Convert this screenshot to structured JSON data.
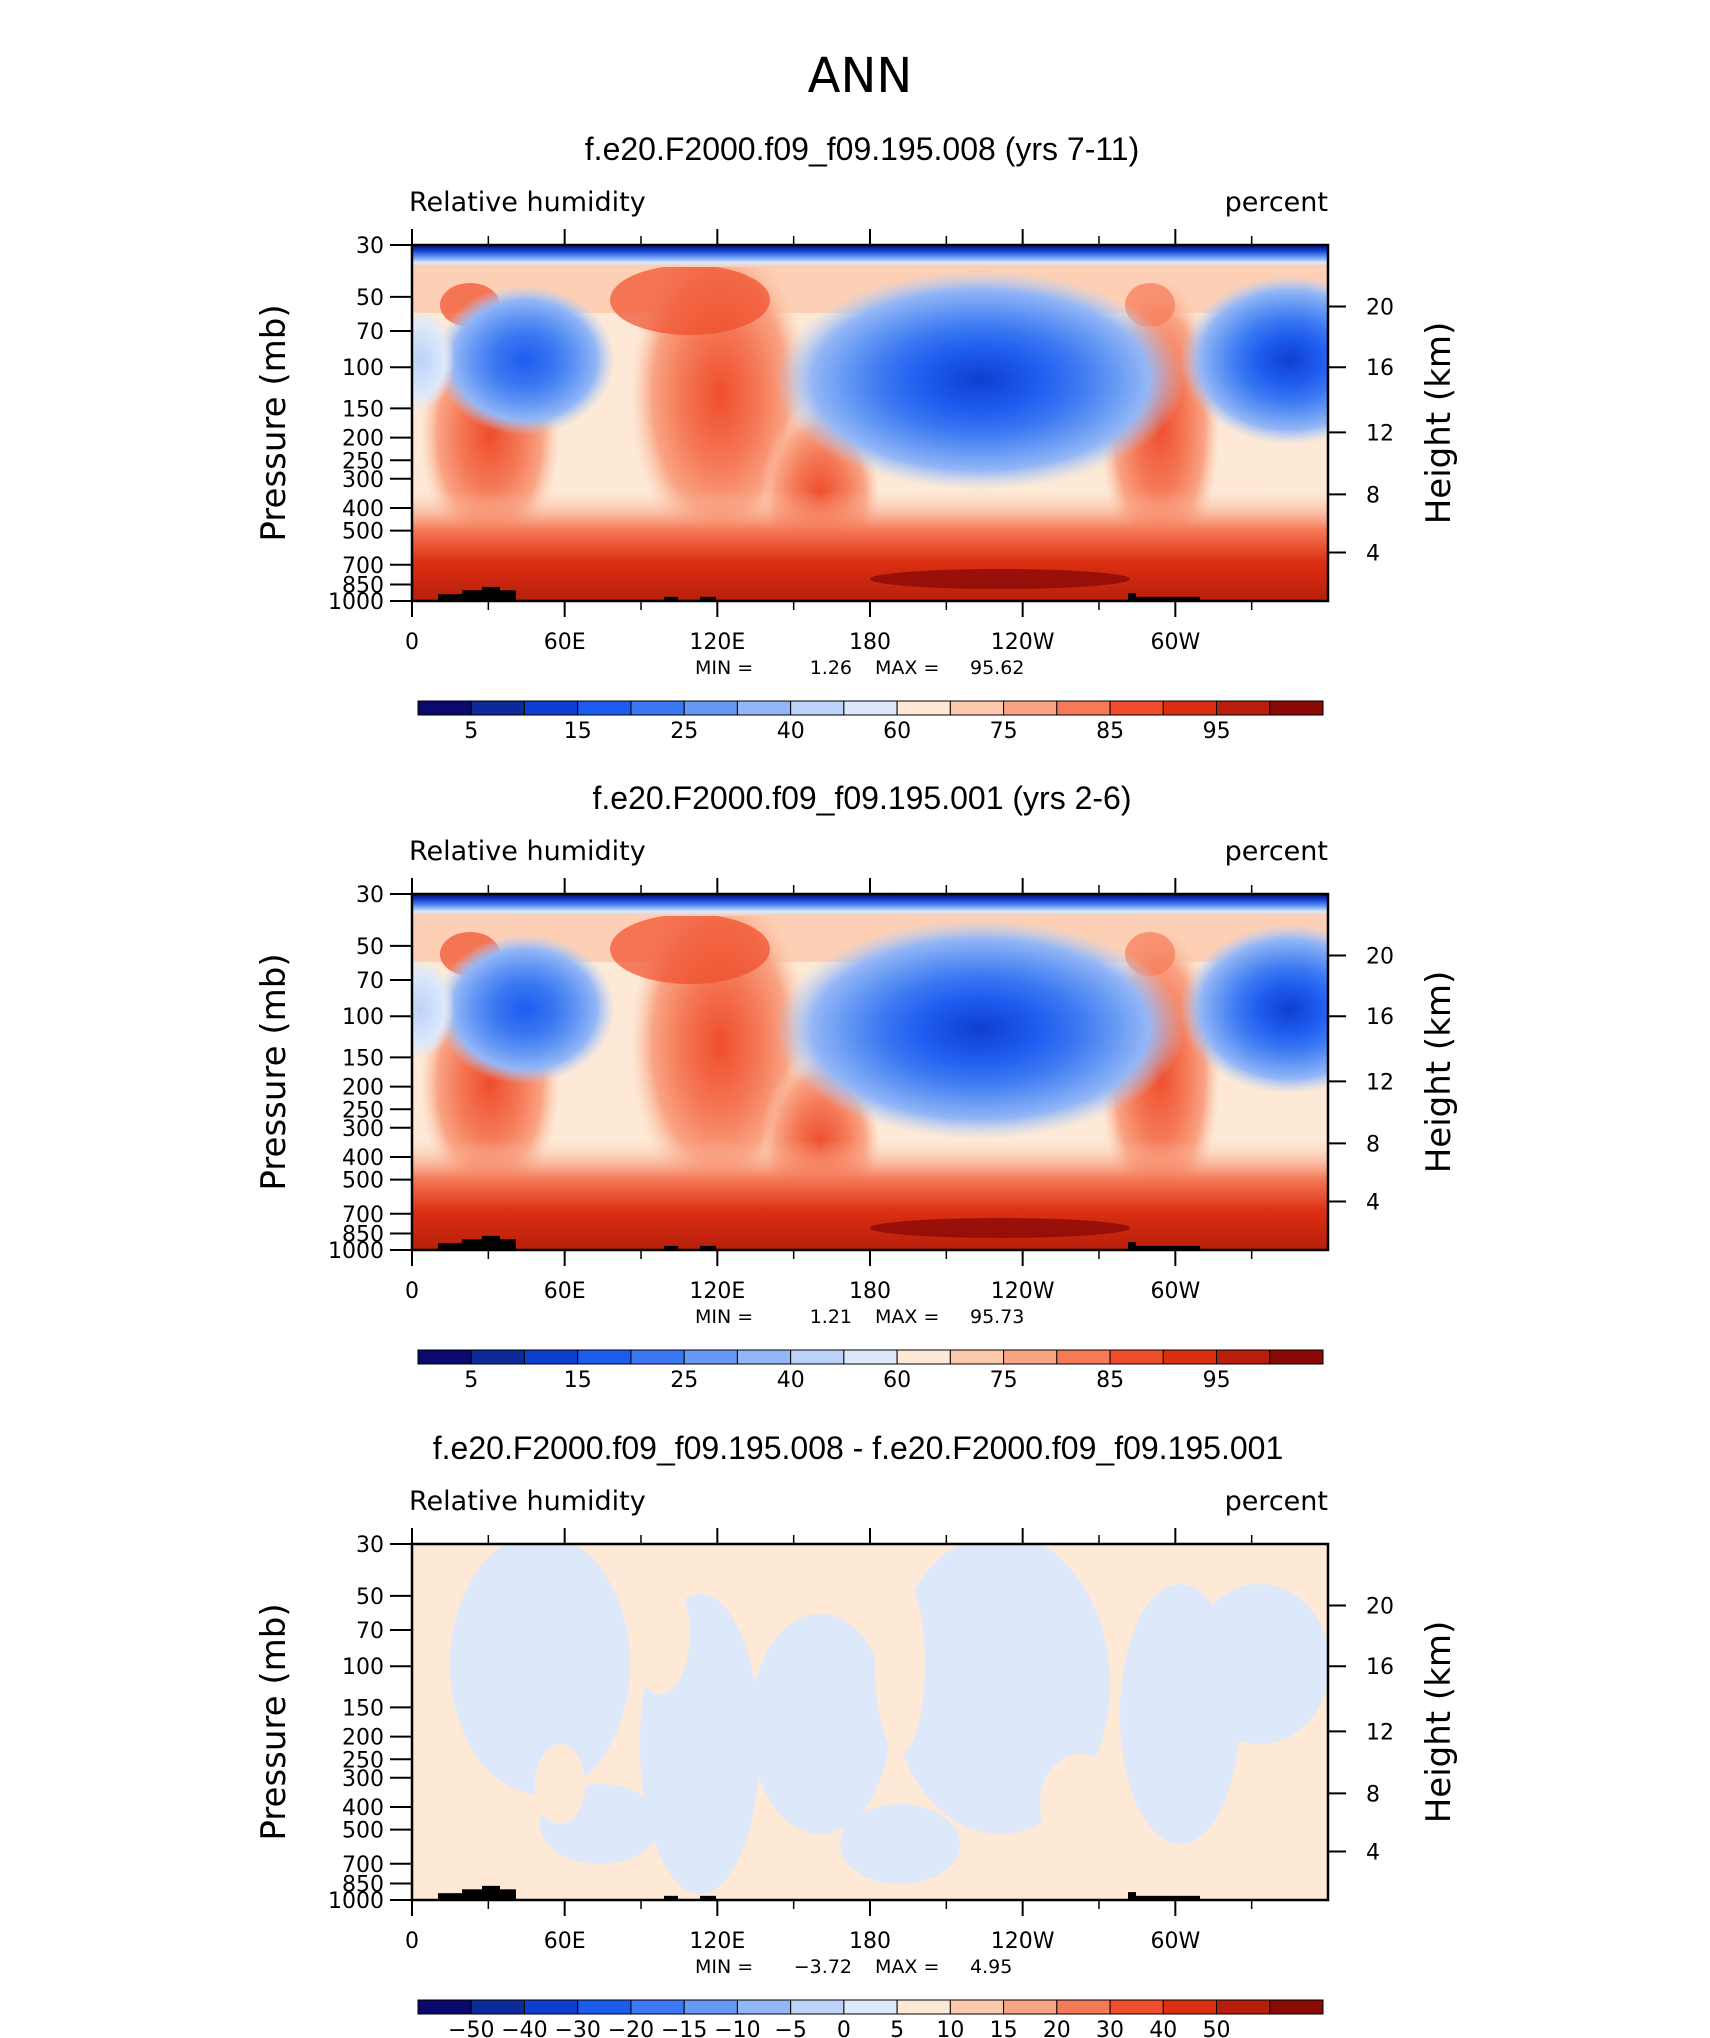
{
  "figure_title": "ANN",
  "chart_data": [
    {
      "type": "heatmap",
      "title": "f.e20.F2000.f09_f09.195.008 (yrs 7-11)",
      "left_label": "Relative humidity",
      "right_label": "percent",
      "ylabel": "Pressure (mb)",
      "y2label": "Height (km)",
      "x_ticks": [
        "0",
        "60E",
        "120E",
        "180",
        "120W",
        "60W"
      ],
      "x_range": [
        0,
        360
      ],
      "y_ticks": [
        "30",
        "50",
        "70",
        "100",
        "150",
        "200",
        "250",
        "300",
        "400",
        "500",
        "700",
        "850",
        "1000"
      ],
      "y_range": [
        30,
        1000
      ],
      "y2_ticks": [
        "20",
        "16",
        "12",
        "8",
        "4"
      ],
      "stats": {
        "min_label": "MIN =",
        "min": "1.26",
        "max_label": "MAX =",
        "max": "95.62"
      },
      "colorbar": {
        "levels": [
          "5",
          "10",
          "15",
          "20",
          "25",
          "30",
          "40",
          "50",
          "60",
          "70",
          "75",
          "80",
          "85",
          "90",
          "95"
        ],
        "labels": [
          "5",
          "15",
          "25",
          "40",
          "60",
          "75",
          "85",
          "95"
        ],
        "colors": [
          "#0a0a6e",
          "#0c2a9a",
          "#0f3fd0",
          "#1e5cf0",
          "#3b78f2",
          "#6699f4",
          "#93b6f6",
          "#bcd2f8",
          "#dde9fb",
          "#fde9d6",
          "#fcc9ad",
          "#f9a484",
          "#f57a58",
          "#ef4d2b",
          "#dc2f12",
          "#b71f0c",
          "#8a0a06"
        ]
      }
    },
    {
      "type": "heatmap",
      "title": "f.e20.F2000.f09_f09.195.001 (yrs 2-6)",
      "left_label": "Relative humidity",
      "right_label": "percent",
      "ylabel": "Pressure (mb)",
      "y2label": "Height (km)",
      "x_ticks": [
        "0",
        "60E",
        "120E",
        "180",
        "120W",
        "60W"
      ],
      "x_range": [
        0,
        360
      ],
      "y_ticks": [
        "30",
        "50",
        "70",
        "100",
        "150",
        "200",
        "250",
        "300",
        "400",
        "500",
        "700",
        "850",
        "1000"
      ],
      "y_range": [
        30,
        1000
      ],
      "y2_ticks": [
        "20",
        "16",
        "12",
        "8",
        "4"
      ],
      "stats": {
        "min_label": "MIN =",
        "min": "1.21",
        "max_label": "MAX =",
        "max": "95.73"
      },
      "colorbar": {
        "levels": [
          "5",
          "10",
          "15",
          "20",
          "25",
          "30",
          "40",
          "50",
          "60",
          "70",
          "75",
          "80",
          "85",
          "90",
          "95"
        ],
        "labels": [
          "5",
          "15",
          "25",
          "40",
          "60",
          "75",
          "85",
          "95"
        ],
        "colors": [
          "#0a0a6e",
          "#0c2a9a",
          "#0f3fd0",
          "#1e5cf0",
          "#3b78f2",
          "#6699f4",
          "#93b6f6",
          "#bcd2f8",
          "#dde9fb",
          "#fde9d6",
          "#fcc9ad",
          "#f9a484",
          "#f57a58",
          "#ef4d2b",
          "#dc2f12",
          "#b71f0c",
          "#8a0a06"
        ]
      }
    },
    {
      "type": "heatmap",
      "title": "f.e20.F2000.f09_f09.195.008 - f.e20.F2000.f09_f09.195.001",
      "left_label": "Relative humidity",
      "right_label": "percent",
      "ylabel": "Pressure (mb)",
      "y2label": "Height (km)",
      "x_ticks": [
        "0",
        "60E",
        "120E",
        "180",
        "120W",
        "60W"
      ],
      "x_range": [
        0,
        360
      ],
      "y_ticks": [
        "30",
        "50",
        "70",
        "100",
        "150",
        "200",
        "250",
        "300",
        "400",
        "500",
        "700",
        "850",
        "1000"
      ],
      "y_range": [
        30,
        1000
      ],
      "y2_ticks": [
        "20",
        "16",
        "12",
        "8",
        "4"
      ],
      "stats": {
        "min_label": "MIN =",
        "min": "−3.72",
        "max_label": "MAX =",
        "max": "4.95"
      },
      "colorbar": {
        "levels": [
          "−50",
          "−40",
          "−30",
          "−20",
          "−15",
          "−10",
          "−5",
          "0",
          "5",
          "10",
          "15",
          "20",
          "30",
          "40",
          "50"
        ],
        "labels": [
          "−50",
          "−40",
          "−30",
          "−20",
          "−15",
          "−10",
          "−5",
          "0",
          "5",
          "10",
          "15",
          "20",
          "30",
          "40",
          "50"
        ],
        "colors": [
          "#0a0a6e",
          "#0c2a9a",
          "#0f3fd0",
          "#1e5cf0",
          "#3b78f2",
          "#6699f4",
          "#93b6f6",
          "#bcd2f8",
          "#dde9fb",
          "#fde9d6",
          "#fcc9ad",
          "#f9a484",
          "#f57a58",
          "#ef4d2b",
          "#dc2f12",
          "#b71f0c",
          "#8a0a06"
        ]
      }
    }
  ]
}
